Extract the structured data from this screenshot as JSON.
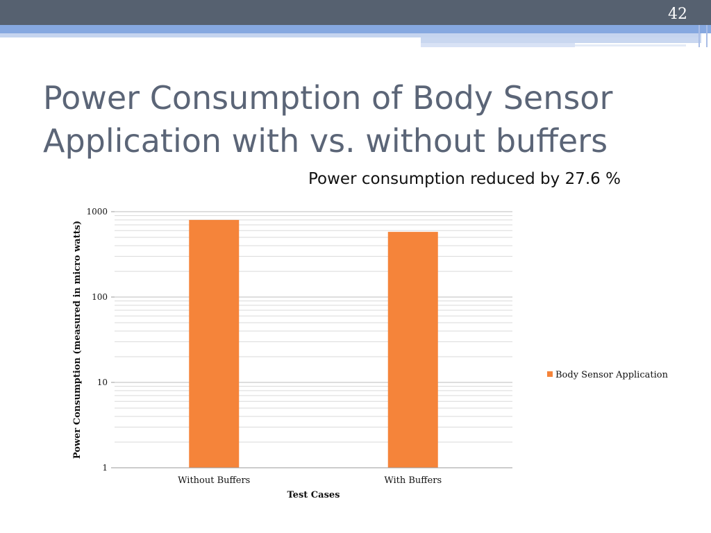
{
  "slide": {
    "number": "42",
    "title_line1": "Power Consumption of Body Sensor",
    "title_line2": "Application with vs. without buffers",
    "subtitle": "Power consumption reduced by 27.6 %"
  },
  "colors": {
    "bar": "#f5843a",
    "title": "#5b6577",
    "header": "#566170",
    "accent": "#86a8e0"
  },
  "chart_data": {
    "type": "bar",
    "categories": [
      "Without Buffers",
      "With Buffers"
    ],
    "series": [
      {
        "name": "Body Sensor Application",
        "values": [
          800,
          580
        ]
      }
    ],
    "title": "",
    "xlabel": "Test Cases",
    "ylabel": "Power Consumption (measured in micro watts)",
    "yscale": "log",
    "ylim": [
      1,
      1000
    ],
    "yticks": [
      "1",
      "10",
      "100",
      "1000"
    ],
    "grid": true,
    "legend": "right"
  }
}
